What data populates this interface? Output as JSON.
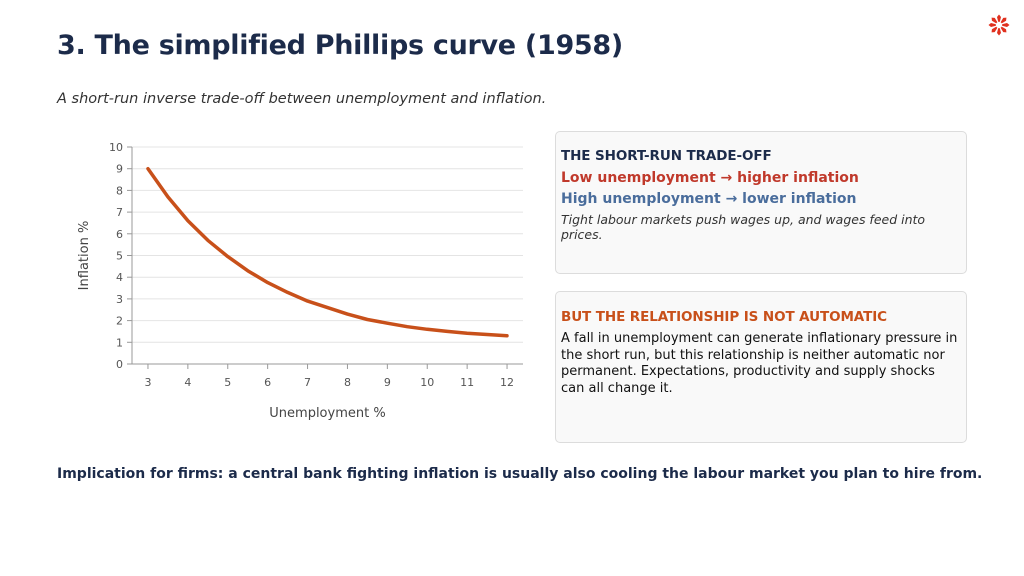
{
  "title": "3. The simplified Phillips curve (1958)",
  "subtitle": "A short-run inverse trade-off between unemployment and inflation.",
  "logo": {
    "icon": "star-burst-logo",
    "color": "#e0301e"
  },
  "chart_data": {
    "type": "line",
    "xlabel": "Unemployment %",
    "ylabel": "Inflation %",
    "xlim": [
      2.6,
      12.4
    ],
    "ylim": [
      0,
      10
    ],
    "x_ticks": [
      "3",
      "4",
      "5",
      "6",
      "7",
      "8",
      "9",
      "10",
      "11",
      "12"
    ],
    "y_ticks": [
      "0",
      "1",
      "2",
      "3",
      "4",
      "5",
      "6",
      "7",
      "8",
      "9",
      "10"
    ],
    "grid": true,
    "series": [
      {
        "color": "#c8501a",
        "x": [
          3,
          3.5,
          4,
          4.5,
          5,
          5.5,
          6,
          6.5,
          7,
          7.5,
          8,
          8.5,
          9,
          9.5,
          10,
          10.5,
          11,
          11.5,
          12
        ],
        "y": [
          9.0,
          7.7,
          6.6,
          5.7,
          4.95,
          4.3,
          3.75,
          3.3,
          2.9,
          2.6,
          2.3,
          2.05,
          1.88,
          1.72,
          1.6,
          1.5,
          1.42,
          1.36,
          1.3
        ]
      }
    ]
  },
  "card1": {
    "heading": "THE SHORT-RUN TRADE-OFF",
    "low_line": "Low unemployment  →  higher inflation",
    "high_line": "High unemployment  →  lower inflation",
    "note": "Tight labour markets push wages up, and wages feed into prices."
  },
  "card2": {
    "heading": "BUT THE RELATIONSHIP IS NOT AUTOMATIC",
    "body": "A fall in unemployment can generate inflationary pressure in the short run, but this relationship is neither automatic nor permanent. Expectations, productivity and supply shocks can all change it."
  },
  "implication": "Implication for firms: a central bank fighting inflation is usually also cooling the labour market you plan to hire from."
}
